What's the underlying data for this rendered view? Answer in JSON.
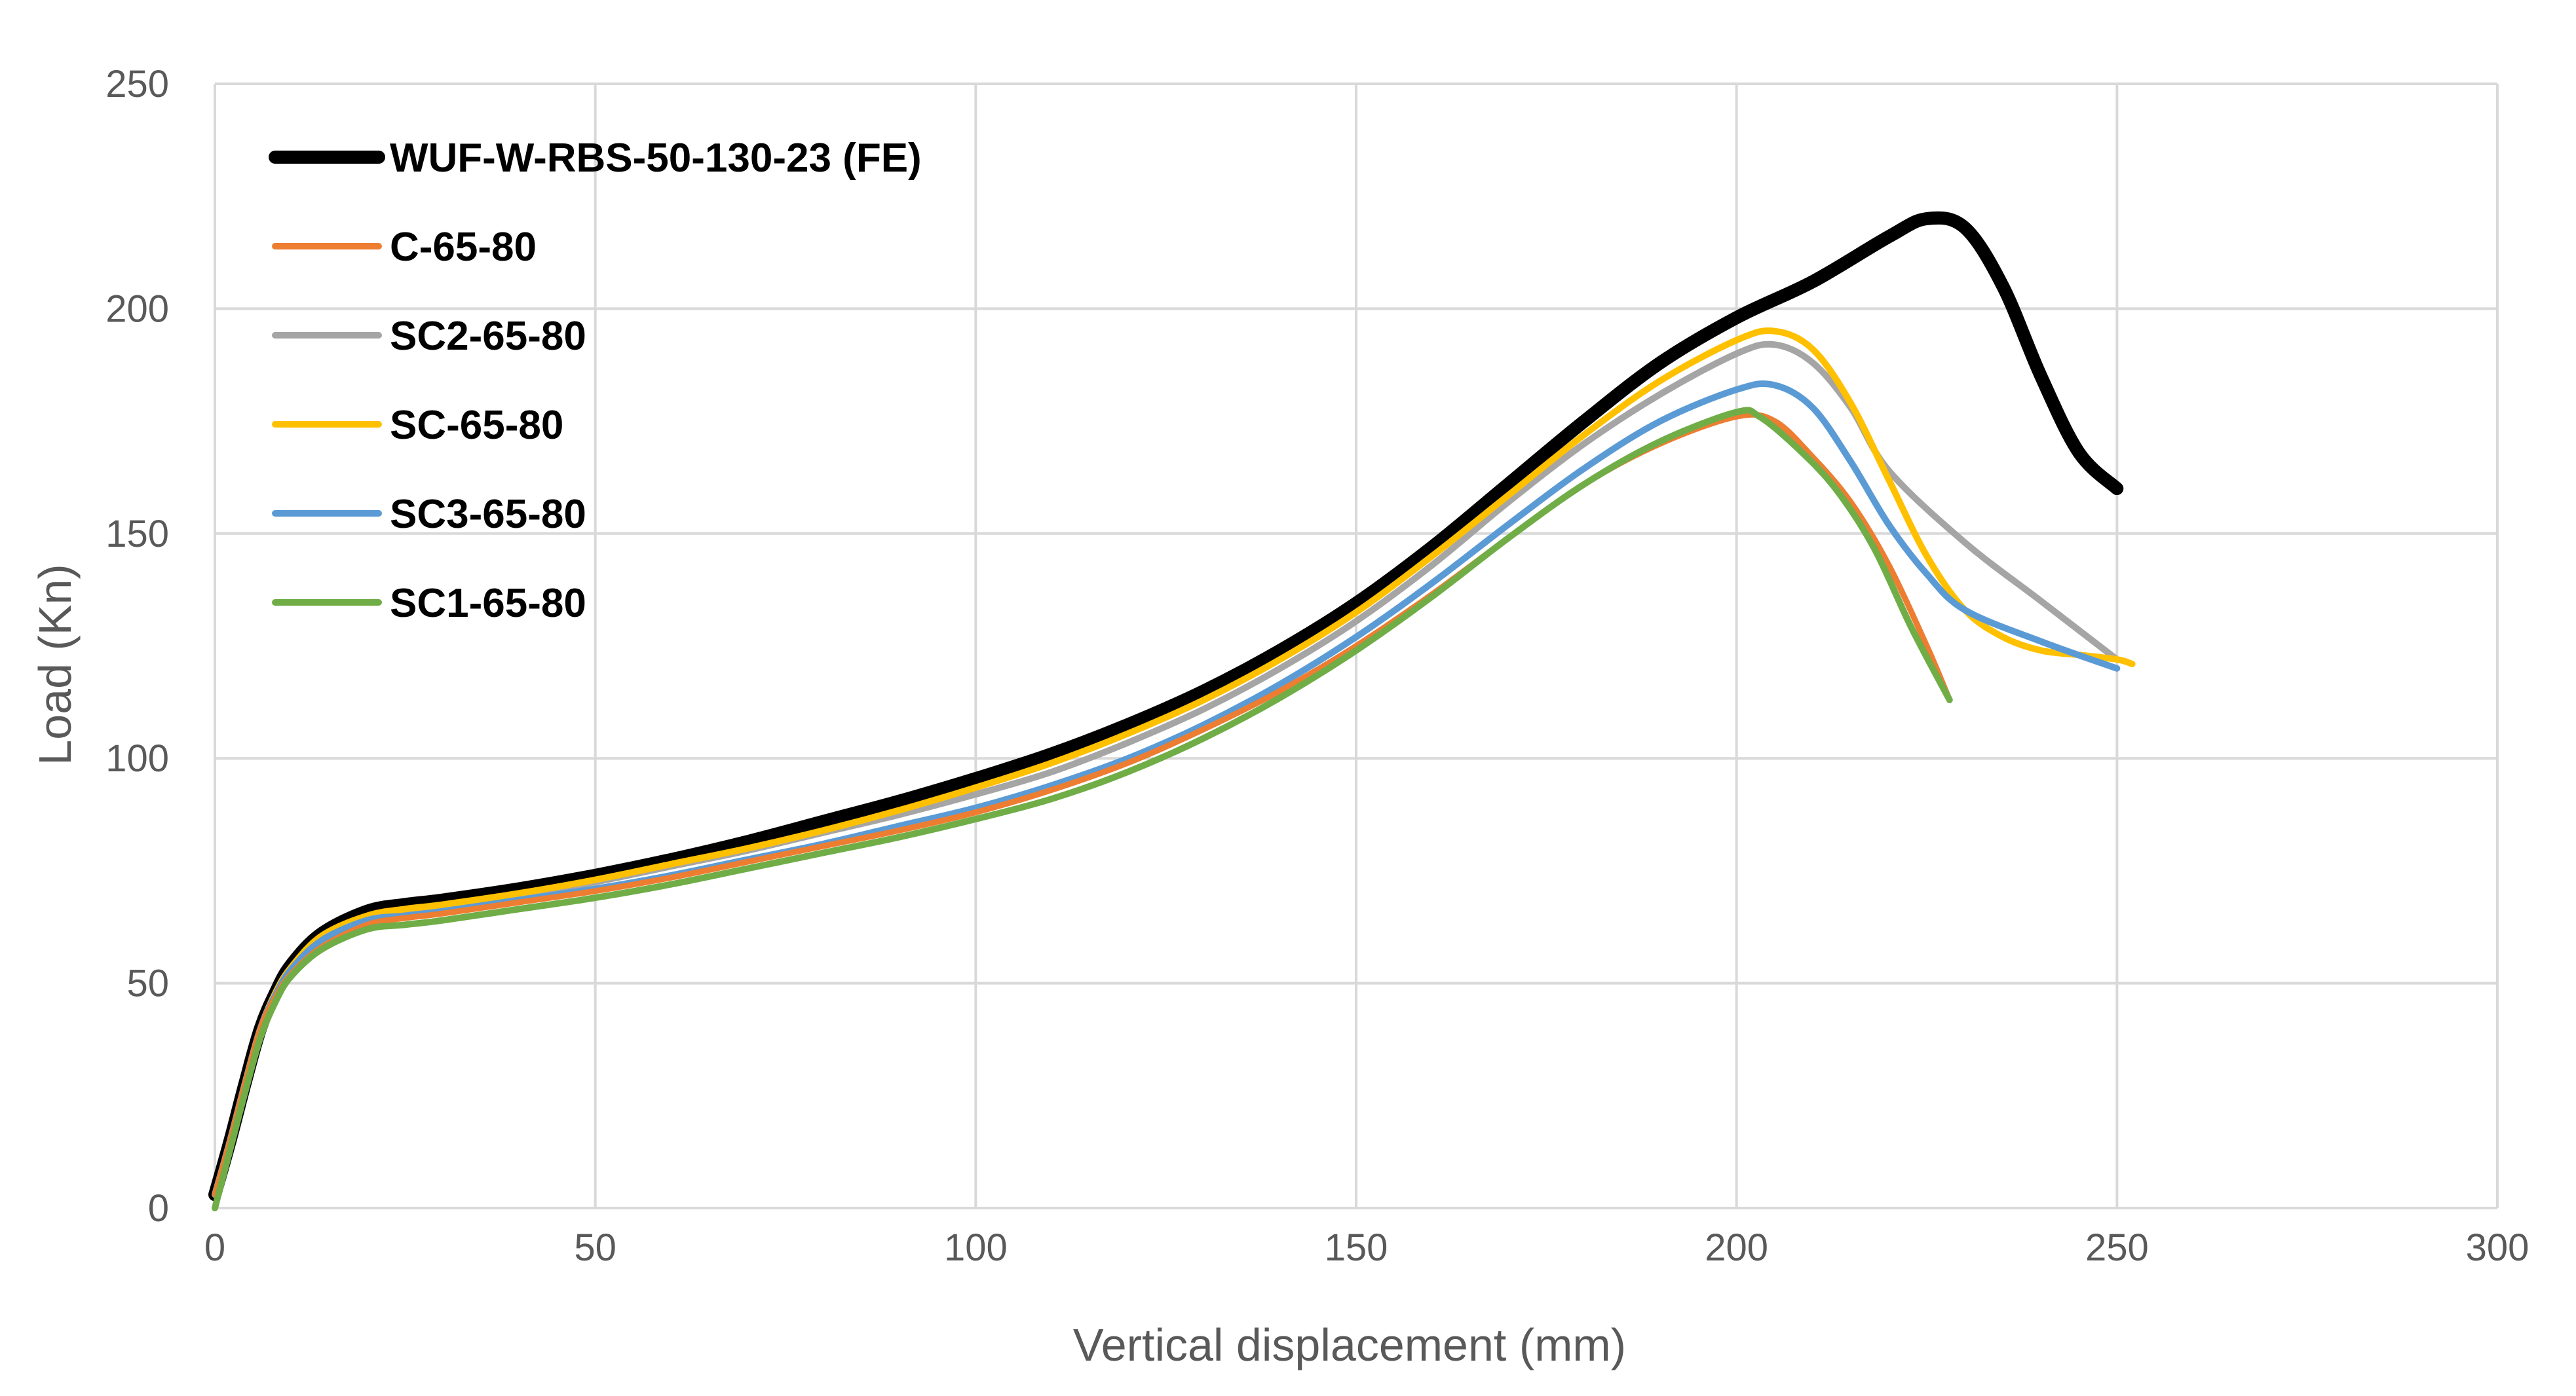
{
  "chart_data": {
    "type": "line",
    "title": "",
    "xlabel": "Vertical displacement (mm)",
    "ylabel": "Load (Kn)",
    "xlim": [
      0,
      300
    ],
    "ylim": [
      0,
      250
    ],
    "x_ticks": [
      "0",
      "50",
      "100",
      "150",
      "200",
      "250",
      "300"
    ],
    "y_ticks": [
      "0",
      "50",
      "100",
      "150",
      "200",
      "250"
    ],
    "grid": true,
    "legend_position": "top-left",
    "series": [
      {
        "name": "WUF-W-RBS-50-130-23 (FE)",
        "color": "#000000",
        "points": [
          [
            0,
            3
          ],
          [
            2,
            15
          ],
          [
            4,
            28
          ],
          [
            6,
            40
          ],
          [
            8,
            48
          ],
          [
            10,
            54
          ],
          [
            14,
            61
          ],
          [
            20,
            66
          ],
          [
            25,
            67.5
          ],
          [
            30,
            68.5
          ],
          [
            40,
            71
          ],
          [
            50,
            74
          ],
          [
            60,
            77.5
          ],
          [
            70,
            81.5
          ],
          [
            80,
            86
          ],
          [
            90,
            90.5
          ],
          [
            100,
            95.5
          ],
          [
            110,
            101
          ],
          [
            120,
            107.5
          ],
          [
            130,
            115
          ],
          [
            140,
            124
          ],
          [
            150,
            134.5
          ],
          [
            160,
            147
          ],
          [
            170,
            161
          ],
          [
            180,
            175
          ],
          [
            190,
            188
          ],
          [
            200,
            198
          ],
          [
            210,
            206
          ],
          [
            220,
            216
          ],
          [
            225,
            220
          ],
          [
            230,
            218
          ],
          [
            235,
            205
          ],
          [
            240,
            185
          ],
          [
            245,
            168
          ],
          [
            250,
            160
          ]
        ]
      },
      {
        "name": "C-65-80",
        "color": "#ed7d31",
        "points": [
          [
            0,
            3
          ],
          [
            2,
            15
          ],
          [
            4,
            28
          ],
          [
            6,
            40
          ],
          [
            8,
            47
          ],
          [
            10,
            52
          ],
          [
            14,
            58
          ],
          [
            20,
            63
          ],
          [
            25,
            64.5
          ],
          [
            30,
            65.5
          ],
          [
            40,
            68
          ],
          [
            50,
            70.5
          ],
          [
            60,
            73.5
          ],
          [
            70,
            77
          ],
          [
            80,
            80.5
          ],
          [
            90,
            84
          ],
          [
            100,
            88
          ],
          [
            110,
            93
          ],
          [
            120,
            99
          ],
          [
            130,
            106.5
          ],
          [
            140,
            115
          ],
          [
            150,
            125
          ],
          [
            160,
            136.5
          ],
          [
            170,
            149
          ],
          [
            180,
            161
          ],
          [
            190,
            170
          ],
          [
            200,
            176
          ],
          [
            205,
            175
          ],
          [
            210,
            167
          ],
          [
            215,
            157
          ],
          [
            220,
            143
          ],
          [
            225,
            125
          ],
          [
            228,
            113
          ]
        ]
      },
      {
        "name": "SC2-65-80",
        "color": "#a5a5a5",
        "points": [
          [
            0,
            3
          ],
          [
            2,
            15
          ],
          [
            4,
            28
          ],
          [
            6,
            40
          ],
          [
            8,
            47.5
          ],
          [
            10,
            53
          ],
          [
            14,
            60
          ],
          [
            20,
            64.5
          ],
          [
            25,
            66
          ],
          [
            30,
            67
          ],
          [
            40,
            69.5
          ],
          [
            50,
            72.5
          ],
          [
            60,
            76
          ],
          [
            70,
            79.5
          ],
          [
            80,
            83.5
          ],
          [
            90,
            87.5
          ],
          [
            100,
            92
          ],
          [
            110,
            97
          ],
          [
            120,
            103.5
          ],
          [
            130,
            111
          ],
          [
            140,
            120
          ],
          [
            150,
            130.5
          ],
          [
            160,
            143
          ],
          [
            170,
            157
          ],
          [
            180,
            170
          ],
          [
            190,
            181
          ],
          [
            200,
            190
          ],
          [
            205,
            192
          ],
          [
            210,
            188
          ],
          [
            215,
            178
          ],
          [
            220,
            164
          ],
          [
            230,
            148
          ],
          [
            240,
            135
          ],
          [
            250,
            122
          ]
        ]
      },
      {
        "name": "SC-65-80",
        "color": "#ffc000",
        "points": [
          [
            0,
            3
          ],
          [
            2,
            15
          ],
          [
            4,
            28
          ],
          [
            6,
            40
          ],
          [
            8,
            48
          ],
          [
            10,
            53.5
          ],
          [
            14,
            60.5
          ],
          [
            20,
            65
          ],
          [
            25,
            66.5
          ],
          [
            30,
            67.5
          ],
          [
            40,
            70
          ],
          [
            50,
            73
          ],
          [
            60,
            76.5
          ],
          [
            70,
            80
          ],
          [
            80,
            84
          ],
          [
            90,
            88.5
          ],
          [
            100,
            93.5
          ],
          [
            110,
            99
          ],
          [
            120,
            105.5
          ],
          [
            130,
            113
          ],
          [
            140,
            122
          ],
          [
            150,
            132.5
          ],
          [
            160,
            145
          ],
          [
            170,
            158.5
          ],
          [
            180,
            172
          ],
          [
            190,
            184
          ],
          [
            200,
            193
          ],
          [
            205,
            195
          ],
          [
            210,
            191
          ],
          [
            215,
            179
          ],
          [
            220,
            162
          ],
          [
            225,
            145
          ],
          [
            230,
            133
          ],
          [
            235,
            127
          ],
          [
            240,
            124
          ],
          [
            245,
            123
          ],
          [
            250,
            122
          ],
          [
            252,
            121
          ]
        ]
      },
      {
        "name": "SC3-65-80",
        "color": "#5b9bd5",
        "points": [
          [
            0,
            3
          ],
          [
            2,
            15
          ],
          [
            4,
            28
          ],
          [
            6,
            40
          ],
          [
            8,
            47.5
          ],
          [
            10,
            53
          ],
          [
            14,
            59.5
          ],
          [
            20,
            64
          ],
          [
            25,
            65
          ],
          [
            30,
            66
          ],
          [
            40,
            68.5
          ],
          [
            50,
            71
          ],
          [
            60,
            74
          ],
          [
            70,
            77.5
          ],
          [
            80,
            81
          ],
          [
            90,
            85
          ],
          [
            100,
            89
          ],
          [
            110,
            94
          ],
          [
            120,
            100
          ],
          [
            130,
            107.5
          ],
          [
            140,
            116.5
          ],
          [
            150,
            127
          ],
          [
            160,
            139
          ],
          [
            170,
            152
          ],
          [
            180,
            164.5
          ],
          [
            190,
            175
          ],
          [
            200,
            182
          ],
          [
            205,
            183
          ],
          [
            210,
            178
          ],
          [
            215,
            166
          ],
          [
            220,
            152
          ],
          [
            225,
            141
          ],
          [
            230,
            133
          ],
          [
            240,
            126
          ],
          [
            250,
            120
          ]
        ]
      },
      {
        "name": "SC1-65-80",
        "color": "#70ad47",
        "points": [
          [
            0,
            0
          ],
          [
            2,
            13
          ],
          [
            4,
            26
          ],
          [
            6,
            38
          ],
          [
            8,
            46
          ],
          [
            10,
            51.5
          ],
          [
            14,
            57.5
          ],
          [
            20,
            62
          ],
          [
            25,
            63
          ],
          [
            30,
            64
          ],
          [
            40,
            66.5
          ],
          [
            50,
            69
          ],
          [
            60,
            72
          ],
          [
            70,
            75.5
          ],
          [
            80,
            79
          ],
          [
            90,
            82.5
          ],
          [
            100,
            86.5
          ],
          [
            110,
            91
          ],
          [
            120,
            97
          ],
          [
            130,
            104.5
          ],
          [
            140,
            113.5
          ],
          [
            150,
            124
          ],
          [
            160,
            136
          ],
          [
            170,
            149
          ],
          [
            180,
            161
          ],
          [
            190,
            170.5
          ],
          [
            200,
            177
          ],
          [
            203,
            176
          ],
          [
            208,
            169
          ],
          [
            213,
            160
          ],
          [
            218,
            147
          ],
          [
            223,
            129
          ],
          [
            228,
            113
          ]
        ]
      }
    ]
  }
}
